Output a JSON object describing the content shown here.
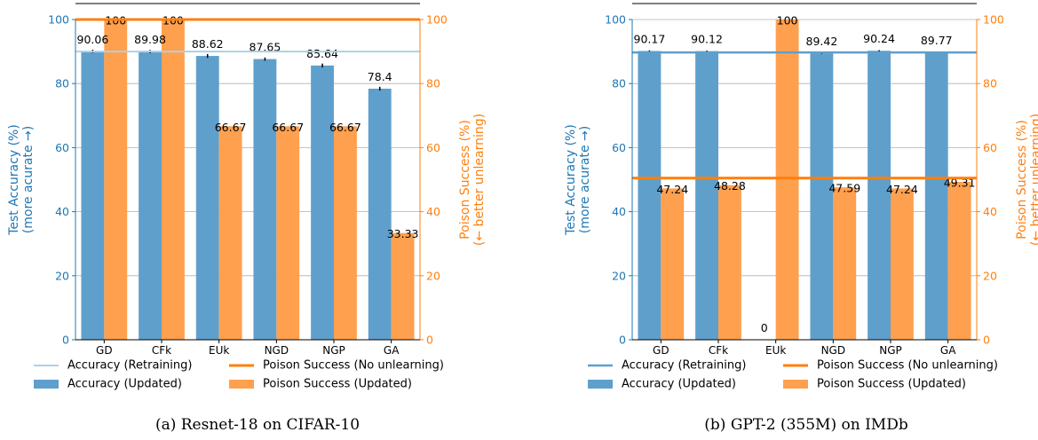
{
  "chart_data": [
    {
      "type": "bar",
      "caption": "(a) Resnet-18 on CIFAR-10",
      "categories": [
        "GD",
        "CFk",
        "EUk",
        "NGD",
        "NGP",
        "GA"
      ],
      "y_left": {
        "label_line1": "Test Accuracy (%)",
        "label_line2": "(more acurate →)",
        "lim": [
          0,
          100
        ],
        "ticks": [
          "0",
          "20",
          "40",
          "60",
          "80",
          "100"
        ],
        "tick_values": [
          0,
          20,
          40,
          60,
          80,
          100
        ]
      },
      "y_right": {
        "label_line1": "Poison Success (%)",
        "label_line2": "(← better unlearning)",
        "lim": [
          0,
          100
        ],
        "ticks": [
          "0",
          "20",
          "40",
          "60",
          "80",
          "100"
        ],
        "tick_values": [
          0,
          20,
          40,
          60,
          80,
          100
        ]
      },
      "series": [
        {
          "name": "Accuracy (Updated)",
          "axis": "left",
          "color": "#5f9fcc",
          "values": [
            90.06,
            89.98,
            88.62,
            87.65,
            85.64,
            78.4
          ],
          "labels": [
            "90.06",
            "89.98",
            "88.62",
            "87.65",
            "85.64",
            "78.4"
          ],
          "error": [
            0.5,
            0.5,
            0.6,
            0.5,
            0.6,
            0.6
          ]
        },
        {
          "name": "Poison Success (Updated)",
          "axis": "right",
          "color": "#ffa04f",
          "values": [
            100,
            100,
            66.67,
            66.67,
            66.67,
            33.33
          ],
          "labels": [
            "100",
            "100",
            "66.67",
            "66.67",
            "66.67",
            "33.33"
          ]
        }
      ],
      "reference_lines": [
        {
          "name": "Accuracy (Retraining)",
          "axis": "left",
          "value": 90,
          "color": "#aed0e6",
          "width": 2
        },
        {
          "name": "Poison Success (No unlearning)",
          "axis": "right",
          "value": 100,
          "color": "#ff7f0e",
          "width": 3
        }
      ],
      "grid": true,
      "legend_position": "bottom"
    },
    {
      "type": "bar",
      "caption": "(b) GPT-2 (355M) on IMDb",
      "categories": [
        "GD",
        "CFk",
        "EUk",
        "NGD",
        "NGP",
        "GA"
      ],
      "y_left": {
        "label_line1": "Test Accuracy (%)",
        "label_line2": "(more acurate →)",
        "lim": [
          0,
          100
        ],
        "ticks": [
          "0",
          "20",
          "40",
          "60",
          "80",
          "100"
        ],
        "tick_values": [
          0,
          20,
          40,
          60,
          80,
          100
        ]
      },
      "y_right": {
        "label_line1": "Poison Success (%)",
        "label_line2": "(← better unlearning)",
        "lim": [
          0,
          100
        ],
        "ticks": [
          "0",
          "20",
          "40",
          "60",
          "80",
          "100"
        ],
        "tick_values": [
          0,
          20,
          40,
          60,
          80,
          100
        ]
      },
      "series": [
        {
          "name": "Accuracy (Updated)",
          "axis": "left",
          "color": "#5f9fcc",
          "values": [
            90.17,
            90.12,
            0,
            89.42,
            90.24,
            89.77
          ],
          "labels": [
            "90.17",
            "90.12",
            "0",
            "89.42",
            "90.24",
            "89.77"
          ],
          "error": [
            0.2,
            0.2,
            0,
            0.2,
            0.2,
            0.2
          ]
        },
        {
          "name": "Poison Success (Updated)",
          "axis": "right",
          "color": "#ffa04f",
          "values": [
            47.24,
            48.28,
            100,
            47.59,
            47.24,
            49.31
          ],
          "labels": [
            "47.24",
            "48.28",
            "100",
            "47.59",
            "47.24",
            "49.31"
          ]
        }
      ],
      "reference_lines": [
        {
          "name": "Accuracy (Retraining)",
          "axis": "left",
          "value": 89.7,
          "color": "#5f9fcc",
          "width": 2.5
        },
        {
          "name": "Poison Success (No unlearning)",
          "axis": "right",
          "value": 50.5,
          "color": "#ff7f0e",
          "width": 3
        }
      ],
      "grid": true,
      "legend_position": "bottom"
    }
  ],
  "colors": {
    "left_axis": "#1f77b4",
    "right_axis": "#ff7f0e"
  }
}
